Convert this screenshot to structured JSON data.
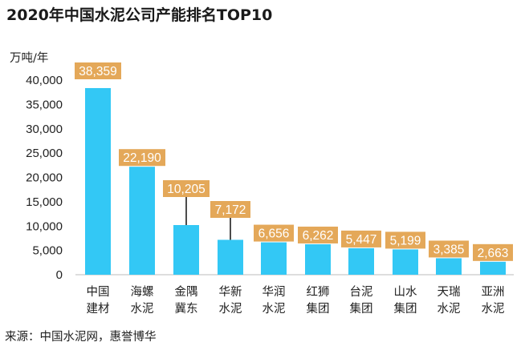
{
  "chart_data": {
    "type": "bar",
    "title": "2020年中国水泥公司产能排名TOP10",
    "ylabel": "万吨/年",
    "xlabel": "",
    "ylim": [
      0,
      40000
    ],
    "yticks": [
      "0",
      "5,000",
      "10,000",
      "15,000",
      "20,000",
      "25,000",
      "30,000",
      "35,000",
      "40,000"
    ],
    "grid": false,
    "categories": [
      [
        "中国",
        "建材"
      ],
      [
        "海螺",
        "水泥"
      ],
      [
        "金隅",
        "冀东"
      ],
      [
        "华新",
        "水泥"
      ],
      [
        "华润",
        "水泥"
      ],
      [
        "红狮",
        "集团"
      ],
      [
        "台泥",
        "集团"
      ],
      [
        "山水",
        "集团"
      ],
      [
        "天瑞",
        "水泥"
      ],
      [
        "亚洲",
        "水泥"
      ]
    ],
    "values": [
      38359,
      22190,
      10205,
      7172,
      6656,
      6262,
      5447,
      5199,
      3385,
      2663
    ],
    "value_labels": [
      "38,359",
      "22,190",
      "10,205",
      "7,172",
      "6,656",
      "6,262",
      "5,447",
      "5,199",
      "3,385",
      "2,663"
    ],
    "bar_color": "#33c8f5",
    "label_bg_color": "#e4a859",
    "source": "来源：中国水泥网，惠誉博华"
  }
}
